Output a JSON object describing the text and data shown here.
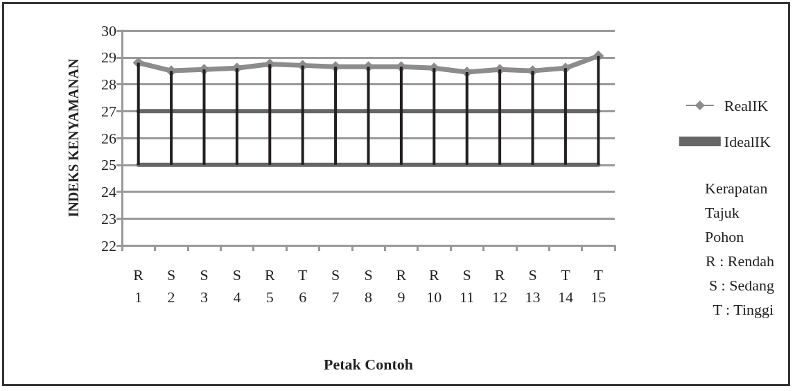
{
  "chart_data": {
    "type": "line",
    "xlabel": "Petak Contoh",
    "ylabel": "INDEKS KENYAMANAN",
    "categories": [
      "R\n1",
      "S\n2",
      "S\n3",
      "S\n4",
      "R\n5",
      "T\n6",
      "S\n7",
      "S\n8",
      "R\n9",
      "R\n10",
      "S\n11",
      "R\n12",
      "S\n13",
      "T\n14",
      "T\n15"
    ],
    "series": [
      {
        "name": "RealIK",
        "color": "#8c8c8c",
        "marker": "diamond",
        "values": [
          28.8,
          28.5,
          28.55,
          28.6,
          28.75,
          28.7,
          28.65,
          28.65,
          28.65,
          28.6,
          28.45,
          28.55,
          28.5,
          28.6,
          29.05
        ],
        "errors": [
          [
            25,
            28.8
          ],
          [
            25,
            28.5
          ],
          [
            25,
            28.55
          ],
          [
            25,
            28.6
          ],
          [
            25,
            28.75
          ],
          [
            25,
            28.7
          ],
          [
            25,
            28.65
          ],
          [
            25,
            28.65
          ],
          [
            25,
            28.65
          ],
          [
            25,
            28.6
          ],
          [
            25,
            28.45
          ],
          [
            25,
            28.55
          ],
          [
            25,
            28.5
          ],
          [
            25,
            28.6
          ],
          [
            25,
            29.05
          ]
        ]
      },
      {
        "name": "IdealIK",
        "color": "#666666",
        "marker": "none",
        "values": [
          27,
          27,
          27,
          27,
          27,
          27,
          27,
          27,
          27,
          27,
          27,
          27,
          27,
          27,
          27
        ]
      },
      {
        "color": "#666666",
        "marker": "none",
        "values": [
          25,
          25,
          25,
          25,
          25,
          25,
          25,
          25,
          25,
          25,
          25,
          25,
          25,
          25,
          25
        ]
      }
    ],
    "ylim": [
      22,
      30
    ],
    "yticks": [
      22,
      23,
      24,
      25,
      26,
      27,
      28,
      29,
      30
    ],
    "grid": "y",
    "legend": "right",
    "annotations": [
      "Kerapatan Tajuk Pohon",
      "R : Rendah",
      "S : Sedang",
      "T : Tinggi"
    ]
  }
}
